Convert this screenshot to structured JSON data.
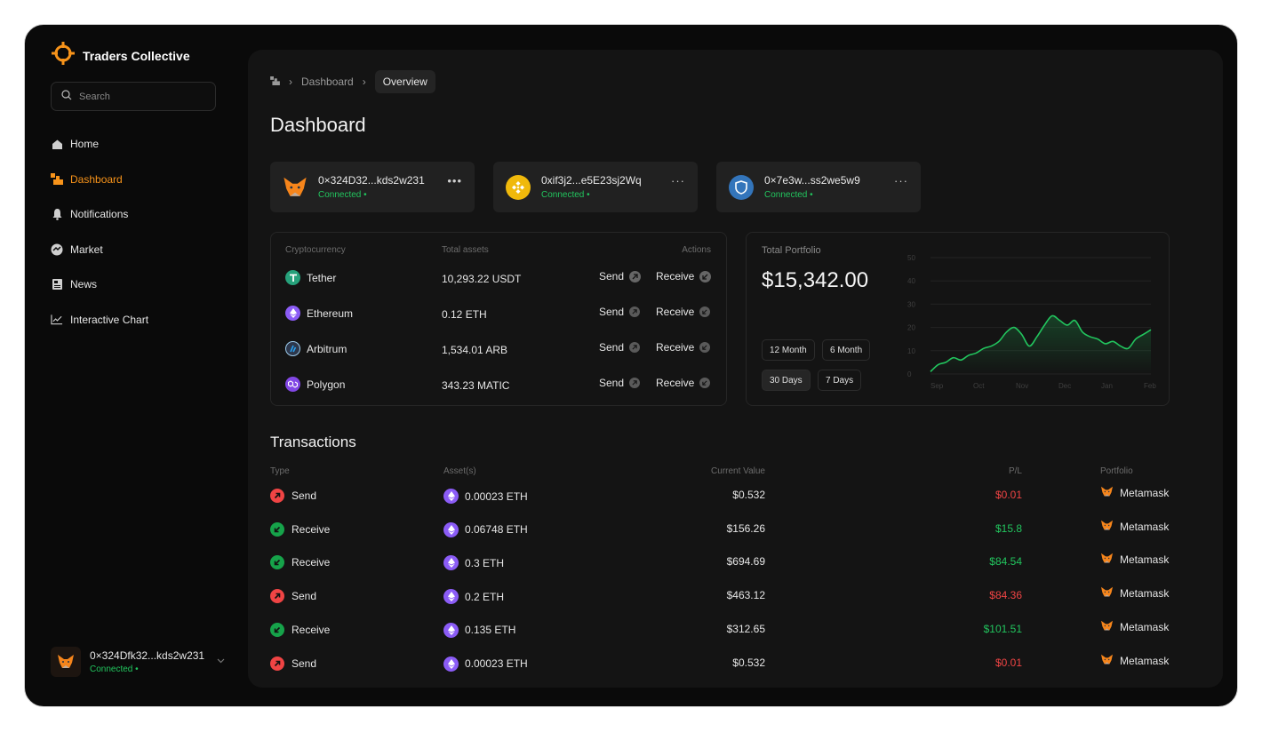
{
  "app": {
    "name": "Traders Collective"
  },
  "search": {
    "placeholder": "Search"
  },
  "nav": [
    {
      "label": "Home",
      "icon": "home-icon"
    },
    {
      "label": "Dashboard",
      "icon": "dashboard-icon",
      "active": true
    },
    {
      "label": "Notifications",
      "icon": "bell-icon"
    },
    {
      "label": "Market",
      "icon": "market-icon"
    },
    {
      "label": "News",
      "icon": "news-icon"
    },
    {
      "label": "Interactive Chart",
      "icon": "chart-icon"
    }
  ],
  "footer_wallet": {
    "address": "0×324Dfk32...kds2w231",
    "status": "Connected •"
  },
  "breadcrumb": {
    "parent": "Dashboard",
    "current": "Overview"
  },
  "page_title": "Dashboard",
  "wallet_cards": [
    {
      "address": "0×324D32...kds2w231",
      "status": "Connected •",
      "icon": "metamask-fox-icon"
    },
    {
      "address": "0xif3j2...e5E23sj2Wq",
      "status": "Connected •",
      "icon": "binance-icon"
    },
    {
      "address": "0×7e3w...ss2we5w9",
      "status": "Connected •",
      "icon": "shield-icon"
    }
  ],
  "assets_table": {
    "headers": {
      "crypto": "Cryptocurrency",
      "total": "Total assets",
      "actions": "Actions"
    },
    "send_label": "Send",
    "receive_label": "Receive",
    "rows": [
      {
        "name": "Tether",
        "amount": "10,293.22 USDT",
        "icon": "tether-icon"
      },
      {
        "name": "Ethereum",
        "amount": "0.12 ETH",
        "icon": "ethereum-icon"
      },
      {
        "name": "Arbitrum",
        "amount": "1,534.01 ARB",
        "icon": "arbitrum-icon"
      },
      {
        "name": "Polygon",
        "amount": "343.23 MATIC",
        "icon": "polygon-icon"
      }
    ]
  },
  "portfolio": {
    "label": "Total Portfolio",
    "value": "$15,342.00",
    "ranges": [
      "12 Month",
      "6 Month",
      "30 Days",
      "7 Days"
    ],
    "selected_range": "30 Days"
  },
  "chart_data": {
    "type": "line",
    "x_ticks": [
      "Sep",
      "Oct",
      "Nov",
      "Dec",
      "Jan",
      "Feb"
    ],
    "y_ticks": [
      0,
      10,
      20,
      30,
      40,
      50
    ],
    "ylim": [
      0,
      50
    ],
    "grid": true,
    "series": [
      {
        "values": [
          1,
          4,
          5,
          7,
          6,
          8,
          9,
          11,
          12,
          14,
          18,
          20,
          17,
          12,
          16,
          21,
          25,
          23,
          21,
          23,
          18,
          16,
          15,
          13,
          14,
          12,
          11,
          15,
          17,
          19
        ]
      }
    ],
    "color": "#22c55e"
  },
  "transactions": {
    "title": "Transactions",
    "headers": {
      "type": "Type",
      "asset": "Asset(s)",
      "value": "Current Value",
      "pl": "P/L",
      "portfolio": "Portfolio"
    },
    "rows": [
      {
        "type": "Send",
        "asset": "0.00023 ETH",
        "value": "$0.532",
        "pl": "$0.01",
        "pl_sign": "neg",
        "portfolio": "Metamask"
      },
      {
        "type": "Receive",
        "asset": "0.06748 ETH",
        "value": "$156.26",
        "pl": "$15.8",
        "pl_sign": "pos",
        "portfolio": "Metamask"
      },
      {
        "type": "Receive",
        "asset": "0.3 ETH",
        "value": "$694.69",
        "pl": "$84.54",
        "pl_sign": "pos",
        "portfolio": "Metamask"
      },
      {
        "type": "Send",
        "asset": "0.2 ETH",
        "value": "$463.12",
        "pl": "$84.36",
        "pl_sign": "neg",
        "portfolio": "Metamask"
      },
      {
        "type": "Receive",
        "asset": "0.135 ETH",
        "value": "$312.65",
        "pl": "$101.51",
        "pl_sign": "pos",
        "portfolio": "Metamask"
      },
      {
        "type": "Send",
        "asset": "0.00023 ETH",
        "value": "$0.532",
        "pl": "$0.01",
        "pl_sign": "neg",
        "portfolio": "Metamask"
      }
    ]
  },
  "colors": {
    "accent": "#f7931a",
    "positive": "#22c55e",
    "negative": "#ef4444",
    "background": "#0a0a0a",
    "panel": "#141414"
  }
}
